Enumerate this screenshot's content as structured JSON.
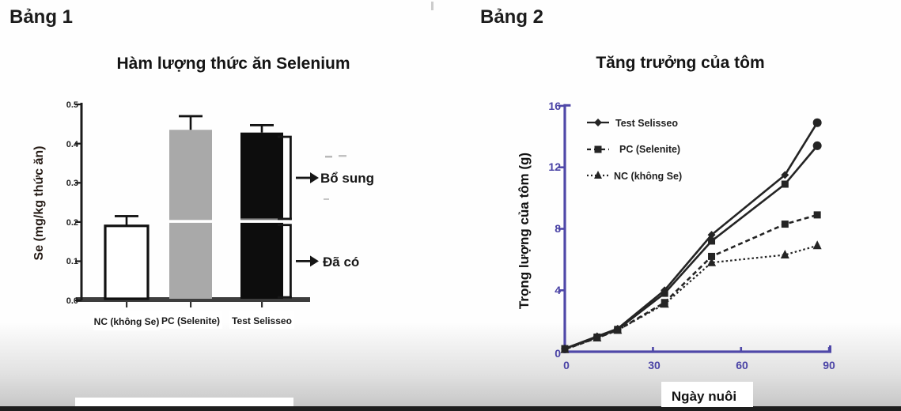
{
  "panels": {
    "left_label": "Bảng 1",
    "right_label": "Bảng 2"
  },
  "colors": {
    "axis_purple": "#4f48a8",
    "line_dark": "#242424",
    "bar_white": "#ffffff",
    "bar_gray": "#a9a9a9",
    "bar_black": "#0d0d0d",
    "left_axis_dark": "#3d3d3d",
    "bottom_bar": "#1e1e1e"
  },
  "chart_data": [
    {
      "type": "bar",
      "title": "Hàm lượng thức ăn Selenium",
      "ylabel": "Se (mg/kg thức ăn)",
      "ylim": [
        0,
        0.5
      ],
      "ytick_labels": [
        "0.0",
        "0.1",
        "0.2",
        "0.3",
        "0.4",
        "0.5"
      ],
      "categories": [
        "NC (không Se)",
        "PC (Selenite)",
        "Test Selisseo"
      ],
      "values": [
        0.19,
        0.435,
        0.428
      ],
      "errors_top": [
        0.215,
        0.47,
        0.447
      ],
      "bar_colors": [
        "#ffffff",
        "#a9a9a9",
        "#0d0d0d"
      ],
      "baseline_line_value": 0.2,
      "annotations": [
        {
          "label": "Bổ sung",
          "from": 0.205,
          "to": 0.42
        },
        {
          "label": "Đã có",
          "from": 0.005,
          "to": 0.195
        }
      ]
    },
    {
      "type": "line",
      "title": "Tăng trưởng của tôm",
      "xlabel": "Ngày nuôi",
      "ylabel": "Trọng lượng của tôm (g)",
      "xlim": [
        0,
        90
      ],
      "ylim": [
        0,
        16
      ],
      "xtick_labels": [
        "0",
        "30",
        "60",
        "90"
      ],
      "ytick_labels": [
        "0",
        "4",
        "8",
        "12",
        "16"
      ],
      "x": [
        0,
        11,
        18,
        34,
        50,
        75,
        86
      ],
      "series": [
        {
          "name": "Test Selisseo (upper solid)",
          "marker": "diamond",
          "line": "solid",
          "values": [
            0.2,
            1.0,
            1.5,
            4.0,
            7.6,
            11.5,
            14.9
          ]
        },
        {
          "name": "Test Selisseo (lower solid)",
          "marker": "square",
          "line": "solid",
          "values": [
            0.2,
            0.95,
            1.45,
            3.8,
            7.2,
            10.9,
            13.4
          ]
        },
        {
          "name": "PC (Selenite)",
          "marker": "square",
          "line": "dashed",
          "values": [
            0.15,
            0.9,
            1.4,
            3.2,
            6.2,
            8.3,
            8.9
          ]
        },
        {
          "name": "NC (không Se)",
          "marker": "triangle",
          "line": "dotted",
          "values": [
            0.15,
            0.9,
            1.4,
            3.1,
            5.8,
            6.3,
            6.9
          ]
        }
      ],
      "legend": [
        {
          "label": "Test Selisseo",
          "marker": "diamond",
          "line": "solid"
        },
        {
          "label": "PC (Selenite)",
          "marker": "square",
          "line": "dashed"
        },
        {
          "label": "NC (không Se)",
          "marker": "triangle",
          "line": "dotted"
        }
      ],
      "legend_position": "upper-left-inside"
    }
  ]
}
